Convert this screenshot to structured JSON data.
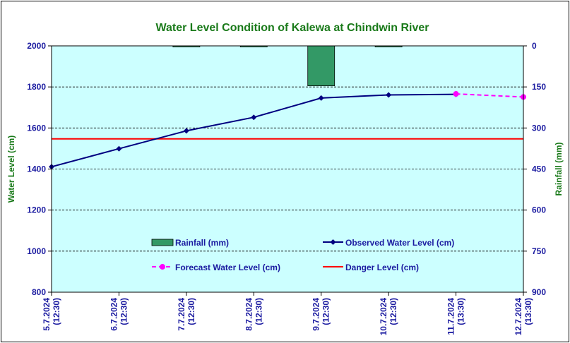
{
  "chart_data": {
    "type": "line",
    "title": "Water Level Condition of Kalewa at Chindwin River",
    "ylabel_left": "Water Level (cm)",
    "ylabel_right": "Rainfall (mm)",
    "categories": [
      "5.7.2024\n(12:30)",
      "6.7.2024\n(12:30)",
      "7.7.2024\n(12:30)",
      "8.7.2024\n(12:30)",
      "9.7.2024\n(12:30)",
      "10.7.2024\n(12:30)",
      "11.7.2024\n(13:30)",
      "12.7.2024\n(13:30)"
    ],
    "ylim_left": [
      800,
      2000
    ],
    "yticks_left": [
      800,
      1000,
      1200,
      1400,
      1600,
      1800,
      2000
    ],
    "ylim_right": [
      0,
      900
    ],
    "yticks_right": [
      0,
      150,
      300,
      450,
      600,
      750,
      900
    ],
    "right_axis_inverted": true,
    "grid": true,
    "series": [
      {
        "name": "Rainfall (mm)",
        "kind": "bar",
        "axis": "right",
        "color": "#339966",
        "values": [
          0,
          0,
          2,
          2,
          146,
          2,
          0,
          0
        ]
      },
      {
        "name": "Observed Water Level (cm)",
        "kind": "line",
        "axis": "left",
        "color": "#000080",
        "marker": "diamond",
        "values": [
          1411,
          1499,
          1586,
          1652,
          1746,
          1761,
          1764,
          null
        ]
      },
      {
        "name": "Forecast Water Level (cm)",
        "kind": "line",
        "axis": "left",
        "color": "#ff00ff",
        "marker": "circle",
        "dashed": true,
        "values": [
          null,
          null,
          null,
          null,
          null,
          null,
          1766,
          1751
        ]
      },
      {
        "name": "Danger Level (cm)",
        "kind": "hline",
        "axis": "left",
        "color": "#ff0000",
        "value": 1547
      }
    ],
    "colors": {
      "plot_background": "#ccffff",
      "title": "#1a7a1a",
      "ticks": "#1a1aa0"
    }
  }
}
